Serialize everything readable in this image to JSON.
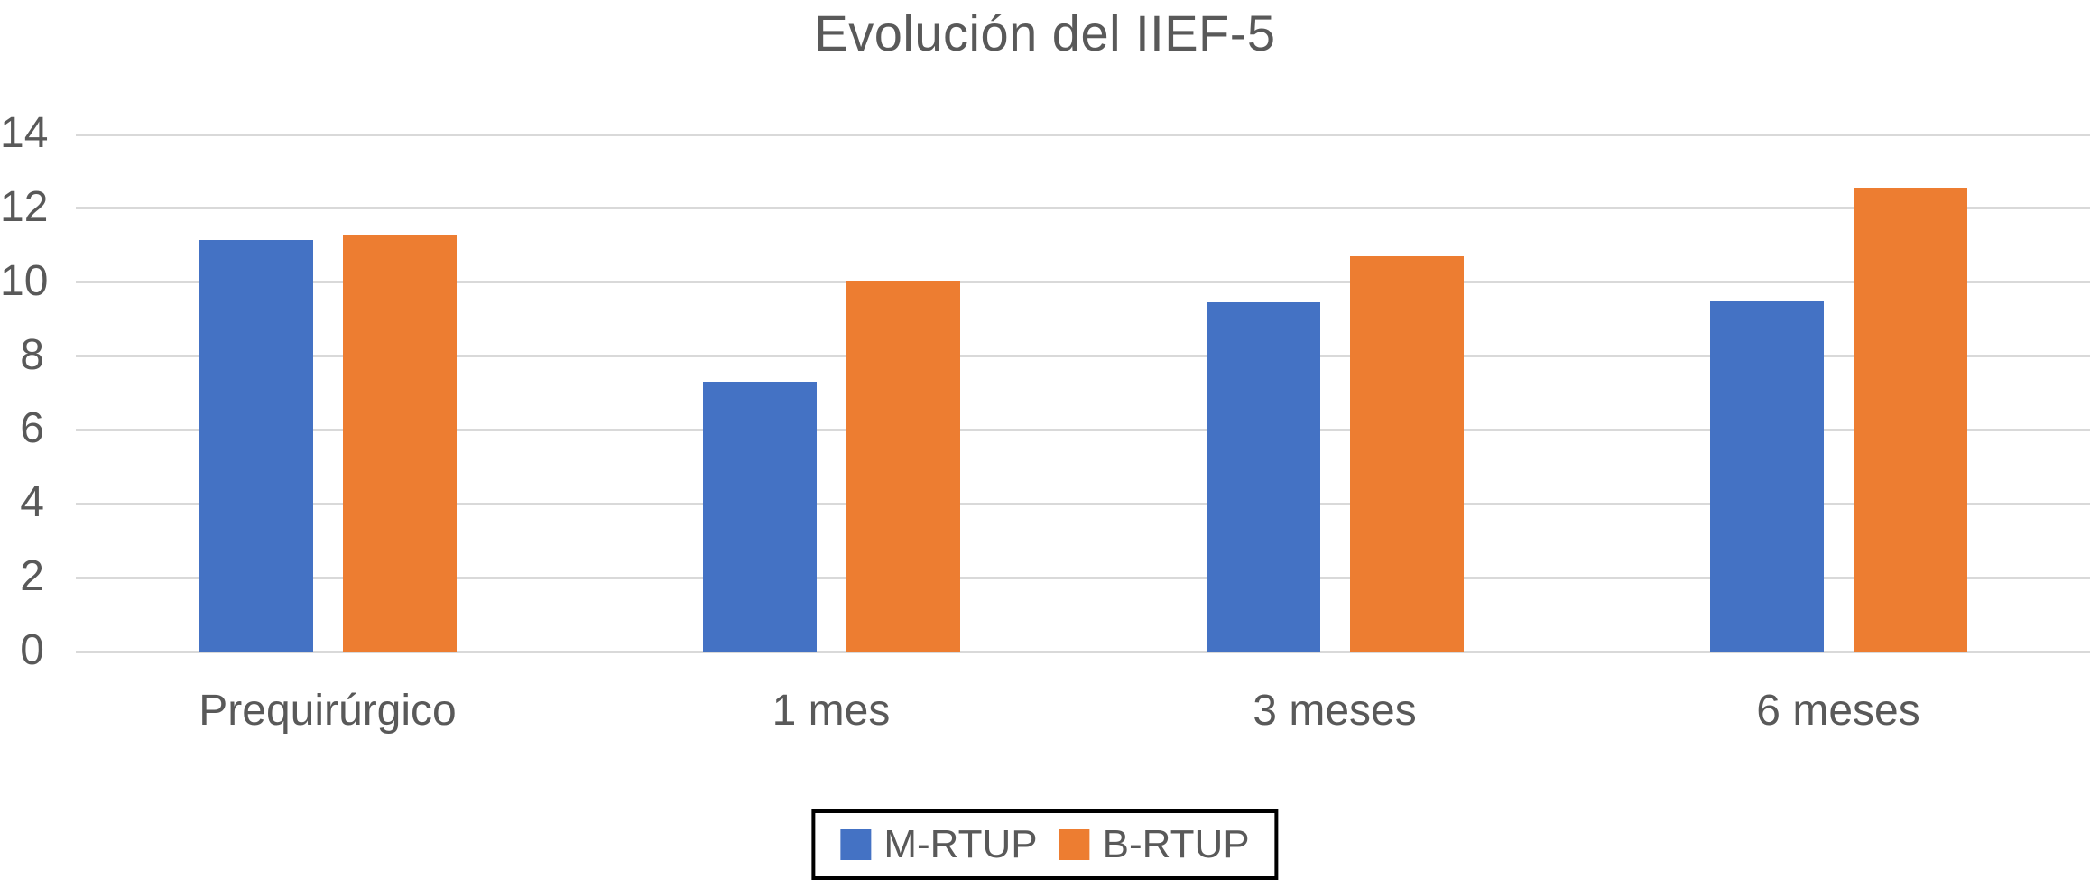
{
  "figure": {
    "title": "Evolución del IIEF-5"
  },
  "colors": {
    "series_m_rtup": "#4472C4",
    "series_b_rtup": "#ED7D31",
    "text": "#595959",
    "gridline": "#D9D9D9",
    "legend_border": "#000000",
    "background": "#FFFFFF"
  },
  "chart_data": {
    "type": "bar",
    "title": "Evolución del IIEF-5",
    "categories": [
      "Prequirúrgico",
      "1 mes",
      "3 meses",
      "6 meses"
    ],
    "series": [
      {
        "name": "M-RTUP",
        "color": "#4472C4",
        "values": [
          11.15,
          7.3,
          9.45,
          9.5
        ]
      },
      {
        "name": "B-RTUP",
        "color": "#ED7D31",
        "values": [
          11.3,
          10.05,
          10.7,
          12.55
        ]
      }
    ],
    "xlabel": "",
    "ylabel": "",
    "ylim": [
      0,
      14
    ],
    "ytick_step": 2,
    "ytick_labels": [
      "0",
      "2",
      "4",
      "6",
      "8",
      "10",
      "12",
      "14"
    ],
    "grid": true,
    "legend_position": "bottom",
    "legend_border": true
  }
}
